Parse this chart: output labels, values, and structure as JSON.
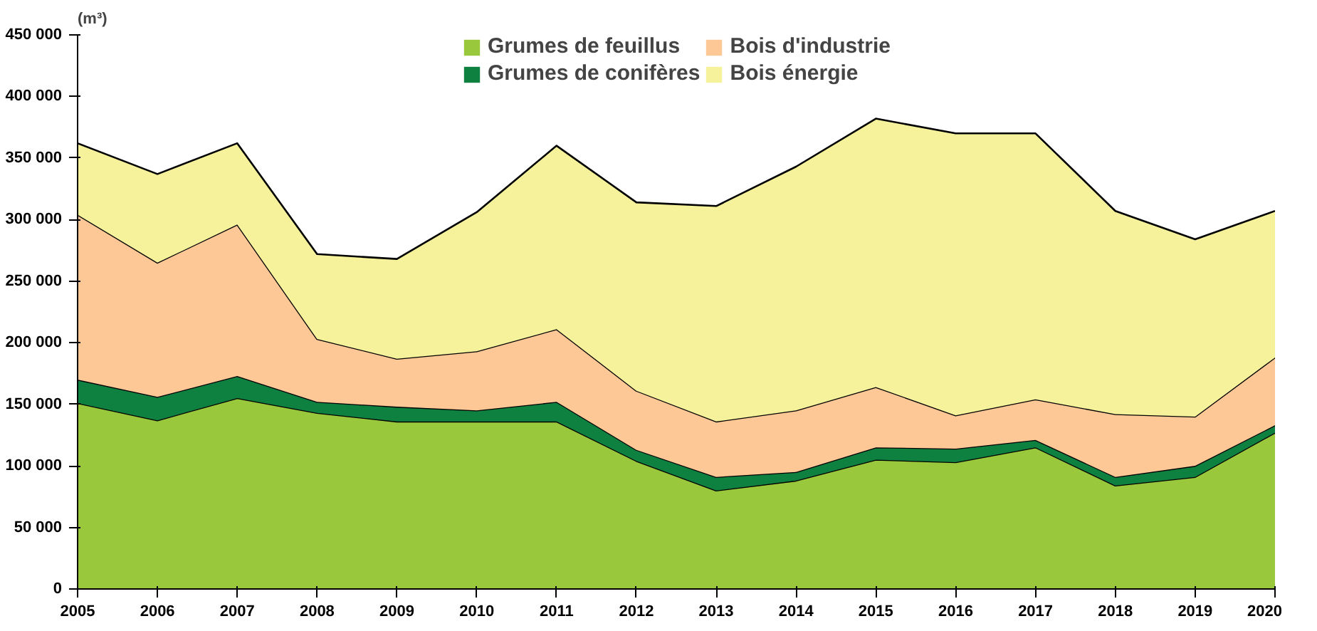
{
  "chart_data": {
    "type": "area",
    "stacked": true,
    "ylabel": "(m³)",
    "x": [
      2005,
      2006,
      2007,
      2008,
      2009,
      2010,
      2011,
      2012,
      2013,
      2014,
      2015,
      2016,
      2017,
      2018,
      2019,
      2020
    ],
    "xlim": [
      2005,
      2020
    ],
    "xticks": [
      2005,
      2006,
      2007,
      2008,
      2009,
      2010,
      2011,
      2012,
      2013,
      2014,
      2015,
      2016,
      2017,
      2018,
      2019,
      2020
    ],
    "ylim": [
      0,
      450000
    ],
    "yticks": [
      0,
      {
        "value": 50000,
        "label": "50 000"
      },
      {
        "value": 100000,
        "label": "100 000"
      },
      {
        "value": 150000,
        "label": "150 000"
      },
      {
        "value": 200000,
        "label": "200 000"
      },
      {
        "value": 250000,
        "label": "250 000"
      },
      {
        "value": 300000,
        "label": "300 000"
      },
      {
        "value": 350000,
        "label": "350 000"
      },
      {
        "value": 400000,
        "label": "400 000"
      },
      {
        "value": 450000,
        "label": "450 000"
      }
    ],
    "grid": false,
    "legend": "top",
    "series": [
      {
        "name": "Grumes de feuillus",
        "color": "#99c83c",
        "values": [
          151000,
          137000,
          155000,
          143000,
          136000,
          136000,
          136000,
          104000,
          80000,
          88000,
          105000,
          103000,
          115000,
          84000,
          91000,
          127000
        ]
      },
      {
        "name": "Grumes de conifères",
        "color": "#0e8040",
        "values": [
          19000,
          19000,
          18000,
          9000,
          12000,
          9000,
          16000,
          9000,
          11000,
          7000,
          10000,
          11000,
          6000,
          7000,
          9000,
          6000
        ]
      },
      {
        "name": "Bois d'industrie",
        "color": "#fdc896",
        "values": [
          134000,
          109000,
          123000,
          51000,
          39000,
          48000,
          59000,
          48000,
          45000,
          50000,
          49000,
          27000,
          33000,
          51000,
          40000,
          55000
        ]
      },
      {
        "name": "Bois énergie",
        "color": "#f6f29c",
        "values": [
          58000,
          72000,
          66000,
          69000,
          81000,
          113000,
          149000,
          153000,
          175000,
          198000,
          218000,
          229000,
          216000,
          165000,
          144000,
          119000
        ]
      }
    ]
  }
}
